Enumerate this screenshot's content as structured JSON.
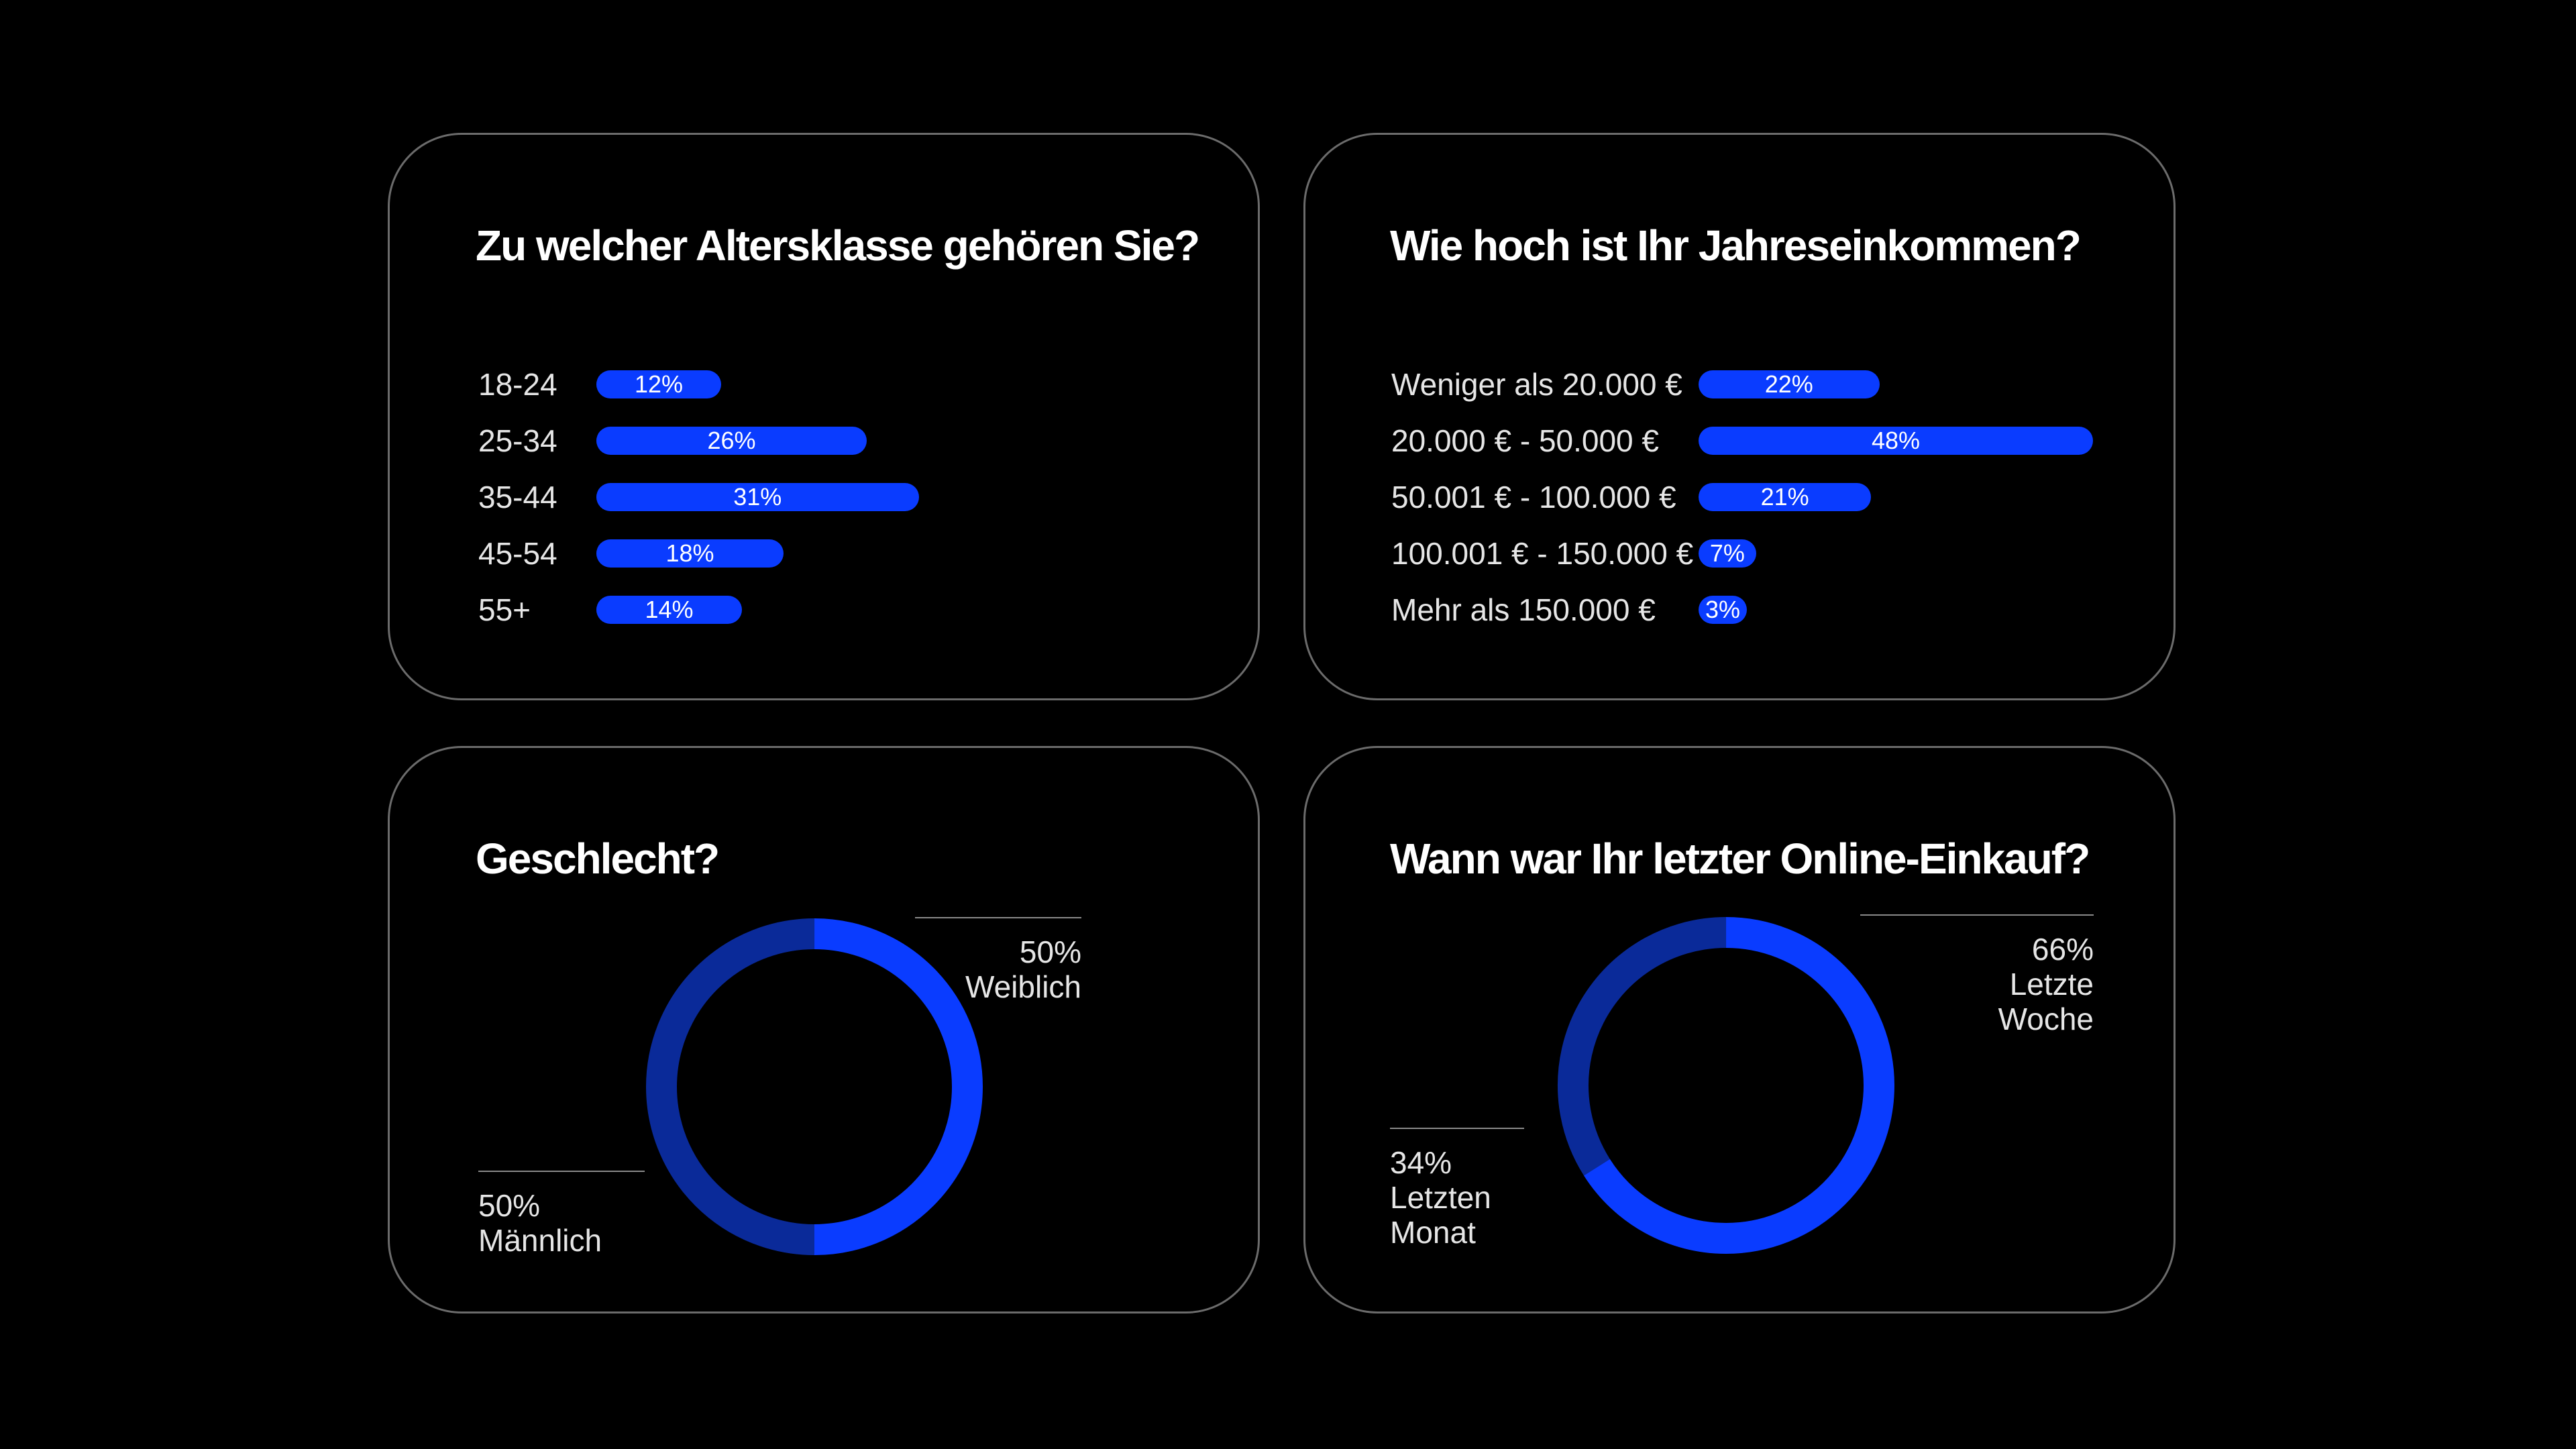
{
  "colors": {
    "background": "#000000",
    "bar": "#0a3cff",
    "donut_primary": "#0a3cff",
    "donut_secondary": "#0a2a99",
    "card_border": "#6b6b6b"
  },
  "chart_data": [
    {
      "type": "bar",
      "orientation": "horizontal",
      "title": "Zu welcher Altersklasse gehören Sie?",
      "categories": [
        "18-24",
        "25-34",
        "35-44",
        "45-54",
        "55+"
      ],
      "values": [
        12,
        26,
        31,
        18,
        14
      ],
      "value_labels": [
        "12%",
        "26%",
        "31%",
        "18%",
        "14%"
      ],
      "unit": "%"
    },
    {
      "type": "bar",
      "orientation": "horizontal",
      "title": "Wie hoch ist Ihr Jahreseinkommen?",
      "categories": [
        "Weniger als 20.000 €",
        "20.000 € - 50.000 €",
        "50.001 € - 100.000 €",
        "100.001 € - 150.000 €",
        "Mehr als 150.000 €"
      ],
      "values": [
        22,
        48,
        21,
        7,
        3
      ],
      "value_labels": [
        "22%",
        "48%",
        "21%",
        "7%",
        "3%"
      ],
      "unit": "%"
    },
    {
      "type": "pie",
      "style": "donut",
      "title": "Geschlecht?",
      "slices": [
        {
          "label": "Weiblich",
          "value": 50,
          "value_label": "50%"
        },
        {
          "label": "Männlich",
          "value": 50,
          "value_label": "50%"
        }
      ]
    },
    {
      "type": "pie",
      "style": "donut",
      "title": "Wann war Ihr letzter Online-Einkauf?",
      "slices": [
        {
          "label_lines": [
            "Letzte",
            "Woche"
          ],
          "value": 66,
          "value_label": "66%"
        },
        {
          "label_lines": [
            "Letzten",
            "Monat"
          ],
          "value": 34,
          "value_label": "34%"
        }
      ]
    }
  ]
}
